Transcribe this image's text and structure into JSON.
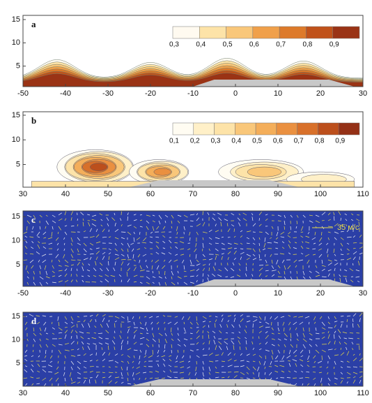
{
  "chart_data": [
    {
      "type": "contour",
      "label": "a",
      "xlim": [
        -50,
        30
      ],
      "ylim": [
        0.6,
        15.9
      ],
      "xticks": [
        -50,
        -40,
        -30,
        -20,
        -10,
        0,
        10,
        20,
        30
      ],
      "yticks": [
        5,
        10,
        15
      ],
      "colorbar": {
        "levels": [
          {
            "value": 0.3,
            "label": "0,3"
          },
          {
            "value": 0.4,
            "label": "0,4"
          },
          {
            "value": 0.5,
            "label": "0,5"
          },
          {
            "value": 0.6,
            "label": "0,6"
          },
          {
            "value": 0.7,
            "label": "0,7"
          },
          {
            "value": 0.8,
            "label": "0,8"
          },
          {
            "value": 0.9,
            "label": "0,9"
          }
        ],
        "colors": [
          "#fffaf0",
          "#fde3a8",
          "#f9c77a",
          "#f0a04a",
          "#dd7a2a",
          "#c0521a",
          "#9a3315"
        ]
      }
    },
    {
      "type": "contour",
      "label": "b",
      "xlim": [
        30,
        110
      ],
      "ylim": [
        0.4,
        15.7
      ],
      "xticks": [
        30,
        40,
        50,
        60,
        70,
        80,
        90,
        100,
        110
      ],
      "yticks": [
        5,
        10,
        15
      ],
      "colorbar": {
        "levels": [
          {
            "value": 0.1,
            "label": "0,1"
          },
          {
            "value": 0.2,
            "label": "0,2"
          },
          {
            "value": 0.3,
            "label": "0,3"
          },
          {
            "value": 0.4,
            "label": "0,4"
          },
          {
            "value": 0.5,
            "label": "0,5"
          },
          {
            "value": 0.6,
            "label": "0,6"
          },
          {
            "value": 0.7,
            "label": "0,7"
          },
          {
            "value": 0.8,
            "label": "0,8"
          },
          {
            "value": 0.9,
            "label": "0,9"
          }
        ],
        "colors": [
          "#fffcf2",
          "#fff0c8",
          "#fde3a8",
          "#f9c77a",
          "#f4ae5a",
          "#ea9040",
          "#d8702a",
          "#bc4f1c",
          "#943016"
        ]
      }
    },
    {
      "type": "vector",
      "label": "c",
      "xlim": [
        -50,
        30
      ],
      "ylim": [
        0.5,
        16.2
      ],
      "xticks": [
        -50,
        -40,
        -30,
        -20,
        -10,
        0,
        10,
        20,
        30
      ],
      "yticks": [
        5,
        10,
        15
      ],
      "reference_vector": {
        "value": 35,
        "label": "35 м/с"
      }
    },
    {
      "type": "vector",
      "label": "d",
      "xlim": [
        30,
        110
      ],
      "ylim": [
        0.1,
        15.9
      ],
      "xticks": [
        30,
        40,
        50,
        60,
        70,
        80,
        90,
        100,
        110
      ],
      "yticks": [
        5,
        10,
        15
      ]
    }
  ]
}
